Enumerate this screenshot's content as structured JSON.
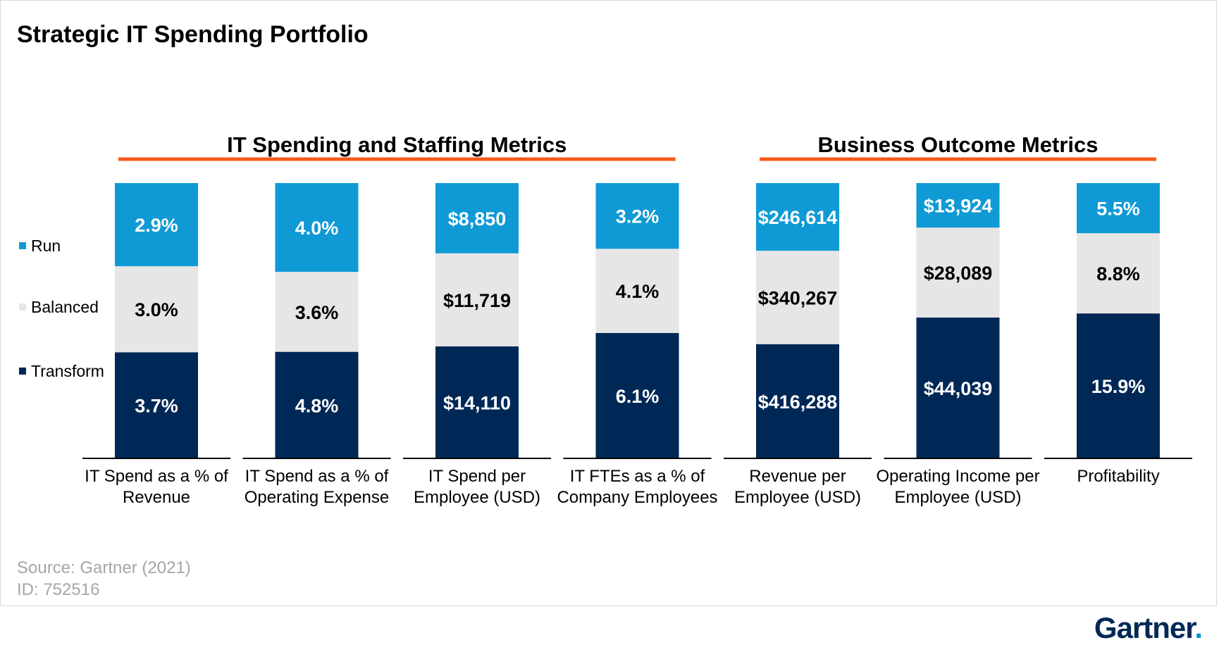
{
  "page": {
    "title": "Strategic IT Spending Portfolio",
    "source": "Source: Gartner (2021)",
    "id_line": "ID: 752516",
    "brand": "Gartner",
    "brand_dot": "."
  },
  "colors": {
    "run": "#0f9ad6",
    "balanced": "#e7e6e6",
    "transform": "#002856",
    "group_underline": "#fa5a17"
  },
  "chart_data": {
    "type": "bar",
    "stacked": true,
    "normalized": true,
    "groups": [
      {
        "label": "IT Spending and Staffing Metrics",
        "categories": [
          0,
          1,
          2,
          3
        ]
      },
      {
        "label": "Business Outcome Metrics",
        "categories": [
          4,
          5,
          6
        ]
      }
    ],
    "categories": [
      [
        "IT Spend as a % of",
        "Revenue"
      ],
      [
        "IT Spend as a % of",
        "Operating Expense"
      ],
      [
        "IT Spend per",
        "Employee (USD)"
      ],
      [
        "IT FTEs as a % of",
        "Company Employees"
      ],
      [
        "Revenue per",
        "Employee (USD)"
      ],
      [
        "Operating Income per",
        "Employee (USD)"
      ],
      [
        "Profitability"
      ]
    ],
    "series": [
      {
        "name": "Transform",
        "values": [
          3.7,
          4.8,
          14110,
          6.1,
          416288,
          44039,
          15.9
        ],
        "labels": [
          "3.7%",
          "4.8%",
          "$14,110",
          "6.1%",
          "$416,288",
          "$44,039",
          "15.9%"
        ]
      },
      {
        "name": "Balanced",
        "values": [
          3.0,
          3.6,
          11719,
          4.1,
          340267,
          28089,
          8.8
        ],
        "labels": [
          "3.0%",
          "3.6%",
          "$11,719",
          "4.1%",
          "$340,267",
          "$28,089",
          "8.8%"
        ]
      },
      {
        "name": "Run",
        "values": [
          2.9,
          4.0,
          8850,
          3.2,
          246614,
          13924,
          5.5
        ],
        "labels": [
          "2.9%",
          "4.0%",
          "$8,850",
          "3.2%",
          "$246,614",
          "$13,924",
          "5.5%"
        ]
      }
    ],
    "legend": [
      "Run",
      "Balanced",
      "Transform"
    ],
    "legend_position": "left"
  }
}
